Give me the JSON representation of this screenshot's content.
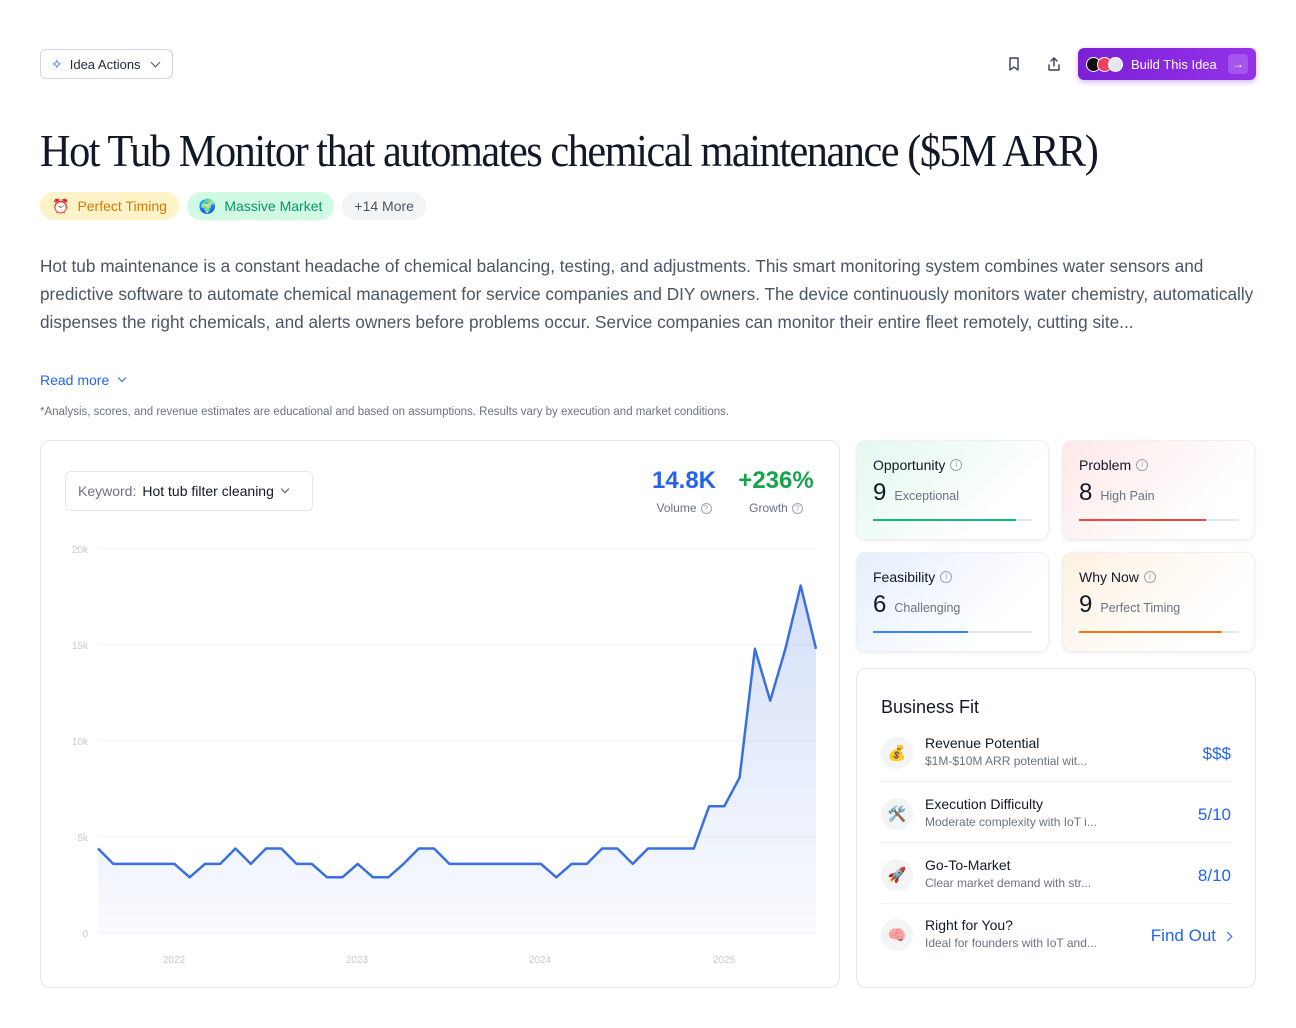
{
  "toolbar": {
    "idea_actions_label": "Idea Actions",
    "build_label": "Build This Idea"
  },
  "title": "Hot Tub Monitor that automates chemical maintenance ($5M ARR)",
  "tags": [
    {
      "icon": "alarm-clock-icon",
      "label": "Perfect Timing"
    },
    {
      "icon": "globe-icon",
      "label": "Massive Market"
    },
    {
      "label": "+14 More"
    }
  ],
  "description": "Hot tub maintenance is a constant headache of chemical balancing, testing, and adjustments. This smart monitoring system combines water sensors and predictive software to automate chemical management for service companies and DIY owners. The device continuously monitors water chemistry, automatically dispenses the right chemicals, and alerts owners before problems occur. Service companies can monitor their entire fleet remotely, cutting site...",
  "read_more": "Read more",
  "disclaimer": "*Analysis, scores, and revenue estimates are educational and based on assumptions. Results vary by execution and market conditions.",
  "keyword": {
    "label": "Keyword:",
    "value": "Hot tub filter cleaning"
  },
  "metrics": {
    "volume": {
      "value": "14.8K",
      "label": "Volume",
      "color": "#2563eb"
    },
    "growth": {
      "value": "+236%",
      "label": "Growth",
      "color": "#16a34a"
    }
  },
  "chart_data": {
    "type": "area",
    "ylim": [
      0,
      20000
    ],
    "y_ticks": [
      "0",
      "5k",
      "10k",
      "15k",
      "20k"
    ],
    "x_ticks": [
      "2022",
      "2023",
      "2024",
      "2025"
    ],
    "series": [
      {
        "color": "#3b6fe0",
        "values": [
          4400,
          3600,
          3600,
          3600,
          3600,
          3600,
          2900,
          3600,
          3600,
          4400,
          3600,
          4400,
          4400,
          3600,
          3600,
          2900,
          2900,
          3600,
          2900,
          2900,
          3600,
          4400,
          4400,
          3600,
          3600,
          3600,
          3600,
          3600,
          3600,
          3600,
          2900,
          3600,
          3600,
          4400,
          4400,
          3600,
          4400,
          4400,
          4400,
          4400,
          6600,
          6600,
          8100,
          14800,
          12100,
          14800,
          18100,
          14800
        ]
      }
    ]
  },
  "scores": {
    "opportunity": {
      "title": "Opportunity",
      "value": "9",
      "level": "Exceptional",
      "fraction": 0.9,
      "color": "#10b981"
    },
    "problem": {
      "title": "Problem",
      "value": "8",
      "level": "High Pain",
      "fraction": 0.8,
      "color": "#ef4444"
    },
    "feasibility": {
      "title": "Feasibility",
      "value": "6",
      "level": "Challenging",
      "fraction": 0.6,
      "color": "#3b82f6"
    },
    "why_now": {
      "title": "Why Now",
      "value": "9",
      "level": "Perfect Timing",
      "fraction": 0.9,
      "color": "#f97316"
    }
  },
  "business_fit": {
    "title": "Business Fit",
    "rows": [
      {
        "icon": "money-bag-icon",
        "name": "Revenue Potential",
        "sub": "$1M-$10M ARR potential wit...",
        "right": "$$$"
      },
      {
        "icon": "tools-icon",
        "name": "Execution Difficulty",
        "sub": "Moderate complexity with IoT i...",
        "right": "5/10"
      },
      {
        "icon": "rocket-icon",
        "name": "Go-To-Market",
        "sub": "Clear market demand with str...",
        "right": "8/10"
      },
      {
        "icon": "brain-icon",
        "name": "Right for You?",
        "sub": "Ideal for founders with IoT and...",
        "right": "Find Out"
      }
    ]
  }
}
